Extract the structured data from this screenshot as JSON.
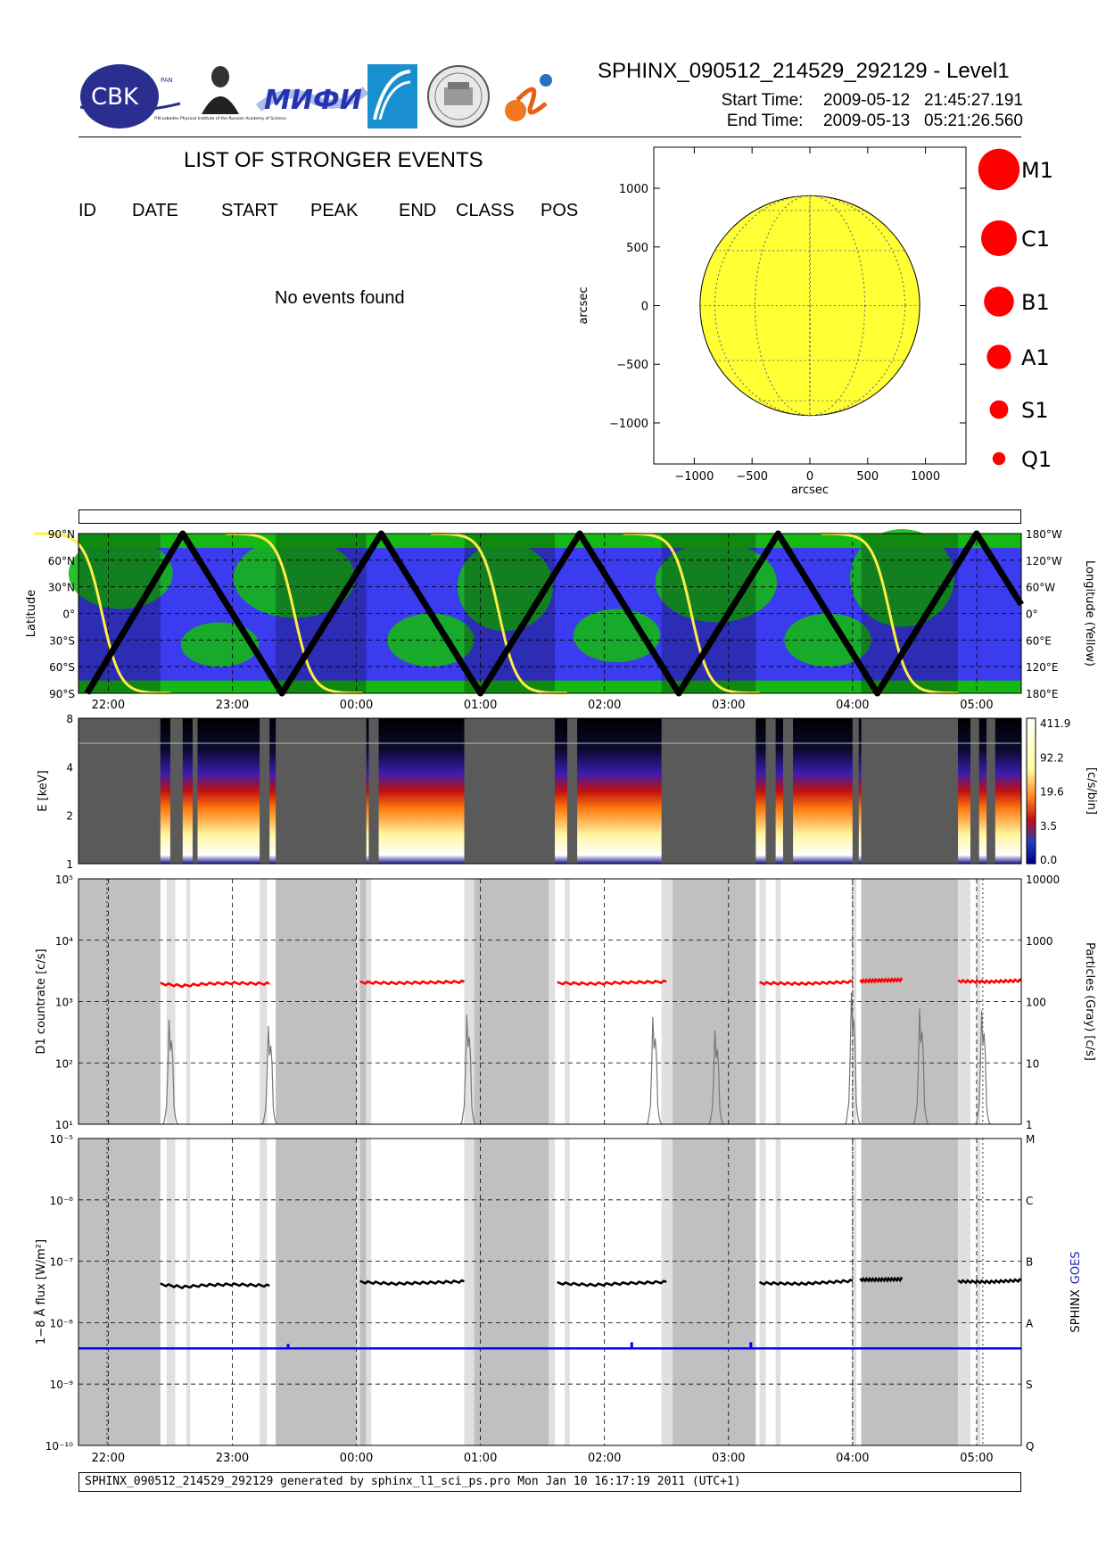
{
  "header": {
    "title": "SPHINX_090512_214529_292129 - Level1",
    "start_label": "Start Time:",
    "start_value": "2009-05-12   21:45:27.191",
    "end_label": "End Time:",
    "end_value": "2009-05-13   05:21:26.560",
    "logos": {
      "cbk_text": "CBK",
      "cbk_sub": "PAN",
      "lebedev_caption": "P.N.Lebedev Physical Institute of the Russian Academy of Science",
      "mifi_text": "МИФИ"
    }
  },
  "events": {
    "title": "LIST OF STRONGER EVENTS",
    "columns": [
      "ID",
      "DATE",
      "START",
      "PEAK",
      "END",
      "CLASS",
      "POS"
    ],
    "empty_message": "No events found"
  },
  "footer": {
    "text": "SPHINX_090512_214529_292129 generated by sphinx_l1_sci_ps.pro Mon Jan 10 16:17:19 2011 (UTC+1)"
  },
  "colors": {
    "sun": "#ffff33",
    "ocean_blue": "#3b3bf0",
    "land_green": "#15b815",
    "track": "#000000",
    "longitude_track": "#ffee44",
    "count_rate": "#ff0000",
    "particles": "#777777",
    "sphinx_flux": "#000000",
    "goes_flux": "#0000ff",
    "gap_gray": "#c0c0c0",
    "gap_light": "#e0e0e0"
  },
  "chart_data": [
    {
      "type": "scatter",
      "title": "",
      "xlabel": "arcsec",
      "ylabel": "arcsec",
      "xlim": [
        -1350,
        1350
      ],
      "ylim": [
        -1350,
        1350
      ],
      "xticks": [
        -1000,
        -500,
        0,
        500,
        1000
      ],
      "yticks": [
        -1000,
        -500,
        0,
        500,
        1000
      ],
      "xtick_labels": [
        "−1000",
        "−500",
        "0",
        "500",
        "1000"
      ],
      "ytick_labels": [
        "−1000",
        "−500",
        "0",
        "500",
        "1000"
      ],
      "solar_radius": 950,
      "points": [],
      "legend": {
        "placement": "right",
        "entries": [
          {
            "label": "M1",
            "size": 6
          },
          {
            "label": "C1",
            "size": 5
          },
          {
            "label": "B1",
            "size": 4
          },
          {
            "label": "A1",
            "size": 3
          },
          {
            "label": "S1",
            "size": 2
          },
          {
            "label": "Q1",
            "size": 1
          }
        ]
      }
    },
    {
      "type": "line",
      "title": "",
      "ylabel": "Latitude",
      "y2label": "Longitude (Yellow)",
      "ylim": [
        -90,
        90
      ],
      "ytick_labels": [
        "90°S",
        "60°S",
        "30°S",
        "0°",
        "30°N",
        "60°N",
        "90°N"
      ],
      "y2tick_labels": [
        "180°E",
        "120°E",
        "60°E",
        "0°",
        "60°W",
        "120°W",
        "180°W"
      ],
      "xlim_hours": [
        21.76,
        29.36
      ],
      "xtick_labels": [
        "22:00",
        "23:00",
        "00:00",
        "01:00",
        "02:00",
        "03:00",
        "04:00",
        "05:00"
      ],
      "latitude_extrema": [
        {
          "t": 21.83,
          "lat": -90
        },
        {
          "t": 22.6,
          "lat": 90
        },
        {
          "t": 23.4,
          "lat": -90
        },
        {
          "t": 24.2,
          "lat": 90
        },
        {
          "t": 25.0,
          "lat": -90
        },
        {
          "t": 25.8,
          "lat": 90
        },
        {
          "t": 26.6,
          "lat": -90
        },
        {
          "t": 27.4,
          "lat": 90
        },
        {
          "t": 28.2,
          "lat": -90
        },
        {
          "t": 29.0,
          "lat": 90
        },
        {
          "t": 29.36,
          "lat": 10
        }
      ],
      "longitude_crossings_hours": [
        21.95,
        23.5,
        25.15,
        26.7,
        28.3
      ],
      "grid": true
    },
    {
      "type": "heatmap",
      "title": "",
      "ylabel": "E [keV]",
      "ylim": [
        1,
        8
      ],
      "yscale": "log",
      "yticks": [
        1,
        2,
        4,
        8
      ],
      "colorbar_label": "[c/s/bin]",
      "colorbar_ticks": [
        "411.9",
        "92.2",
        "19.6",
        "3.5",
        "0.0"
      ],
      "data_intervals_hours": [
        [
          22.42,
          22.5
        ],
        [
          22.6,
          22.68
        ],
        [
          22.72,
          23.22
        ],
        [
          23.3,
          23.35
        ],
        [
          24.08,
          24.1
        ],
        [
          24.18,
          24.87
        ],
        [
          25.6,
          25.7
        ],
        [
          25.78,
          26.46
        ],
        [
          27.22,
          27.3
        ],
        [
          27.38,
          27.44
        ],
        [
          27.52,
          28.0
        ],
        [
          28.05,
          28.07
        ],
        [
          28.85,
          28.95
        ],
        [
          29.02,
          29.08
        ],
        [
          29.15,
          29.36
        ]
      ],
      "mask": "grey outside data intervals",
      "grid": false
    },
    {
      "type": "line",
      "title": "",
      "ylabel": "D1 countrate [c/s]",
      "y2label": "Particles (Gray) [c/s]",
      "yscale": "log",
      "ylim": [
        10,
        100000
      ],
      "ytick_labels": [
        "10¹",
        "10²",
        "10³",
        "10⁴",
        "10⁵"
      ],
      "y2tick_labels": [
        "1",
        "10",
        "100",
        "1000",
        "10000"
      ],
      "series": [
        {
          "name": "",
          "color": "red",
          "segments": [
            {
              "t": [
                22.42,
                22.6,
                22.8,
                23.0,
                23.3
              ],
              "y": [
                1950,
                1800,
                1950,
                2000,
                1950
              ]
            },
            {
              "t": [
                24.03,
                24.3,
                24.6,
                24.87
              ],
              "y": [
                2050,
                2000,
                2050,
                2100
              ]
            },
            {
              "t": [
                25.62,
                25.9,
                26.2,
                26.5
              ],
              "y": [
                2000,
                1950,
                2050,
                2100
              ]
            },
            {
              "t": [
                27.25,
                27.6,
                28.0
              ],
              "y": [
                2000,
                1950,
                2100
              ]
            },
            {
              "t": [
                28.06,
                28.2,
                28.4
              ],
              "y": [
                2150,
                2200,
                2250
              ]
            },
            {
              "t": [
                28.85,
                29.1,
                29.36
              ],
              "y": [
                2150,
                2100,
                2200
              ]
            }
          ]
        },
        {
          "name": "",
          "color": "gray",
          "peaks": [
            {
              "t": 22.5,
              "y": 400
            },
            {
              "t": 23.3,
              "y": 300
            },
            {
              "t": 24.9,
              "y": 500
            },
            {
              "t": 26.4,
              "y": 450
            },
            {
              "t": 26.9,
              "y": 250
            },
            {
              "t": 28.0,
              "y": 1300
            },
            {
              "t": 28.55,
              "y": 650
            },
            {
              "t": 29.05,
              "y": 600
            }
          ]
        }
      ],
      "grid": true
    },
    {
      "type": "line",
      "title": "",
      "ylabel": "1−8 Å flux [W/m²]",
      "y2label_parts": [
        "SPHINX",
        "GOES"
      ],
      "yscale": "log",
      "ylim": [
        1e-10,
        1e-05
      ],
      "ytick_labels": [
        "10⁻¹⁰",
        "10⁻⁹",
        "10⁻⁸",
        "10⁻⁷",
        "10⁻⁶",
        "10⁻⁵"
      ],
      "y2tick_labels": [
        "Q",
        "S",
        "A",
        "B",
        "C",
        "M"
      ],
      "xtick_labels": [
        "22:00",
        "23:00",
        "00:00",
        "01:00",
        "02:00",
        "03:00",
        "04:00",
        "05:00"
      ],
      "series": [
        {
          "name": "SPHINX",
          "color": "black",
          "segments": [
            {
              "t": [
                22.42,
                22.6,
                22.8,
                23.0,
                23.3
              ],
              "y": [
                4.2e-08,
                3.8e-08,
                4.1e-08,
                4.2e-08,
                4e-08
              ]
            },
            {
              "t": [
                24.03,
                24.3,
                24.6,
                24.87
              ],
              "y": [
                4.6e-08,
                4.3e-08,
                4.5e-08,
                4.7e-08
              ]
            },
            {
              "t": [
                25.62,
                25.9,
                26.2,
                26.5
              ],
              "y": [
                4.4e-08,
                4.1e-08,
                4.4e-08,
                4.6e-08
              ]
            },
            {
              "t": [
                27.25,
                27.6,
                28.0
              ],
              "y": [
                4.4e-08,
                4.3e-08,
                4.8e-08
              ]
            },
            {
              "t": [
                28.06,
                28.2,
                28.4
              ],
              "y": [
                5e-08,
                5e-08,
                5.1e-08
              ]
            },
            {
              "t": [
                28.85,
                29.1,
                29.36
              ],
              "y": [
                4.7e-08,
                4.6e-08,
                4.9e-08
              ]
            }
          ]
        },
        {
          "name": "GOES",
          "color": "blue",
          "level": 3.8e-09,
          "spikes": [
            {
              "t": 23.45,
              "y": 4.5e-09
            },
            {
              "t": 26.22,
              "y": 4.8e-09
            },
            {
              "t": 27.18,
              "y": 4.8e-09
            }
          ]
        }
      ],
      "grid": true
    }
  ]
}
